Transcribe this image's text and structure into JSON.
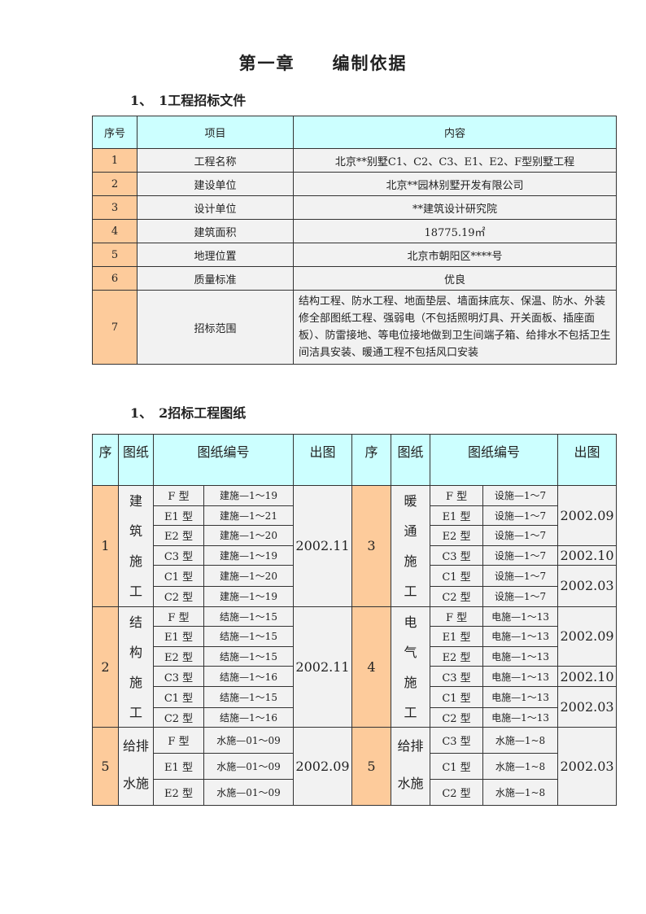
{
  "title": "第一章　　编制依据",
  "section1": {
    "heading": "1、　1工程招标文件",
    "headers": [
      "序号",
      "项目",
      "内容"
    ],
    "rows": [
      {
        "no": "1",
        "item": "工程名称",
        "content": "北京**别墅C1、C2、C3、E1、E2、F型别墅工程"
      },
      {
        "no": "2",
        "item": "建设单位",
        "content": "北京**园林别墅开发有限公司"
      },
      {
        "no": "3",
        "item": "设计单位",
        "content": "**建筑设计研究院"
      },
      {
        "no": "4",
        "item": "建筑面积",
        "content": "18775.19㎡"
      },
      {
        "no": "5",
        "item": "地理位置",
        "content": "北京市朝阳区****号"
      },
      {
        "no": "6",
        "item": "质量标准",
        "content": "优良"
      },
      {
        "no": "7",
        "item": "招标范围",
        "content": "结构工程、防水工程、地面垫层、墙面抹底灰、保温、防水、外装修全部图纸工程、强弱电（不包括照明灯具、开关面板、插座面板）、防雷接地、等电位接地做到卫生间端子箱、给排水不包括卫生间洁具安装、暖通工程不包括风口安装"
      }
    ]
  },
  "section2": {
    "heading": "1、　2招标工程图纸",
    "headers": [
      "序",
      "图纸",
      "图纸编号",
      "出图",
      "序",
      "图纸",
      "图纸编号",
      "出图"
    ],
    "groups": [
      {
        "left": {
          "no": "1",
          "category": "建筑施工",
          "rows": [
            [
              "F 型",
              "建施—1～19"
            ],
            [
              "E1 型",
              "建施—1～21"
            ],
            [
              "E2 型",
              "建施—1～20"
            ],
            [
              "C3 型",
              "建施—1～19"
            ],
            [
              "C1 型",
              "建施—1～20"
            ],
            [
              "C2 型",
              "建施—1～19"
            ]
          ],
          "dates": [
            {
              "text": "2002.11",
              "span": 6
            }
          ]
        },
        "right": {
          "no": "3",
          "category": "暖通施工",
          "rows": [
            [
              "F 型",
              "设施—1～7"
            ],
            [
              "E1 型",
              "设施—1～7"
            ],
            [
              "E2 型",
              "设施—1～7"
            ],
            [
              "C3 型",
              "设施—1～7"
            ],
            [
              "C1 型",
              "设施—1～7"
            ],
            [
              "C2 型",
              "设施—1～7"
            ]
          ],
          "dates": [
            {
              "text": "2002.09",
              "span": 3
            },
            {
              "text": "2002.10",
              "span": 1
            },
            {
              "text": "2002.03",
              "span": 2
            }
          ]
        }
      },
      {
        "left": {
          "no": "2",
          "category": "结构施工",
          "rows": [
            [
              "F 型",
              "结施—1～15"
            ],
            [
              "E1 型",
              "结施—1～15"
            ],
            [
              "E2 型",
              "结施—1～15"
            ],
            [
              "C3 型",
              "结施—1～16"
            ],
            [
              "C1 型",
              "结施—1～15"
            ],
            [
              "C2 型",
              "结施—1～16"
            ]
          ],
          "dates": [
            {
              "text": "2002.11",
              "span": 6
            }
          ]
        },
        "right": {
          "no": "4",
          "category": "电气施工",
          "rows": [
            [
              "F 型",
              "电施—1～13"
            ],
            [
              "E1 型",
              "电施—1～13"
            ],
            [
              "E2 型",
              "电施—1～13"
            ],
            [
              "C3 型",
              "电施—1～13"
            ],
            [
              "C1 型",
              "电施—1～13"
            ],
            [
              "C2 型",
              "电施—1～13"
            ]
          ],
          "dates": [
            {
              "text": "2002.09",
              "span": 3
            },
            {
              "text": "2002.10",
              "span": 1
            },
            {
              "text": "2002.03",
              "span": 2
            }
          ]
        }
      },
      {
        "left": {
          "no": "5",
          "category": "给排水施工",
          "rows": [
            [
              "F 型",
              "水施—01～09"
            ],
            [
              "E1 型",
              "水施—01～09"
            ],
            [
              "E2 型",
              "水施—01～09"
            ]
          ],
          "dates": [
            {
              "text": "2002.09",
              "span": 3
            }
          ]
        },
        "right": {
          "no": "5",
          "category": "给排水施工",
          "rows": [
            [
              "C3 型",
              "水施—1~8"
            ],
            [
              "C1 型",
              "水施—1~8"
            ],
            [
              "C2 型",
              "水施—1~8"
            ]
          ],
          "dates": [
            {
              "text": "2002.03",
              "span": 3
            }
          ]
        }
      }
    ]
  },
  "colors": {
    "header_bg": "#ccffff",
    "number_bg": "#fdcb9b",
    "cell_bg": "#f2f2f2"
  }
}
